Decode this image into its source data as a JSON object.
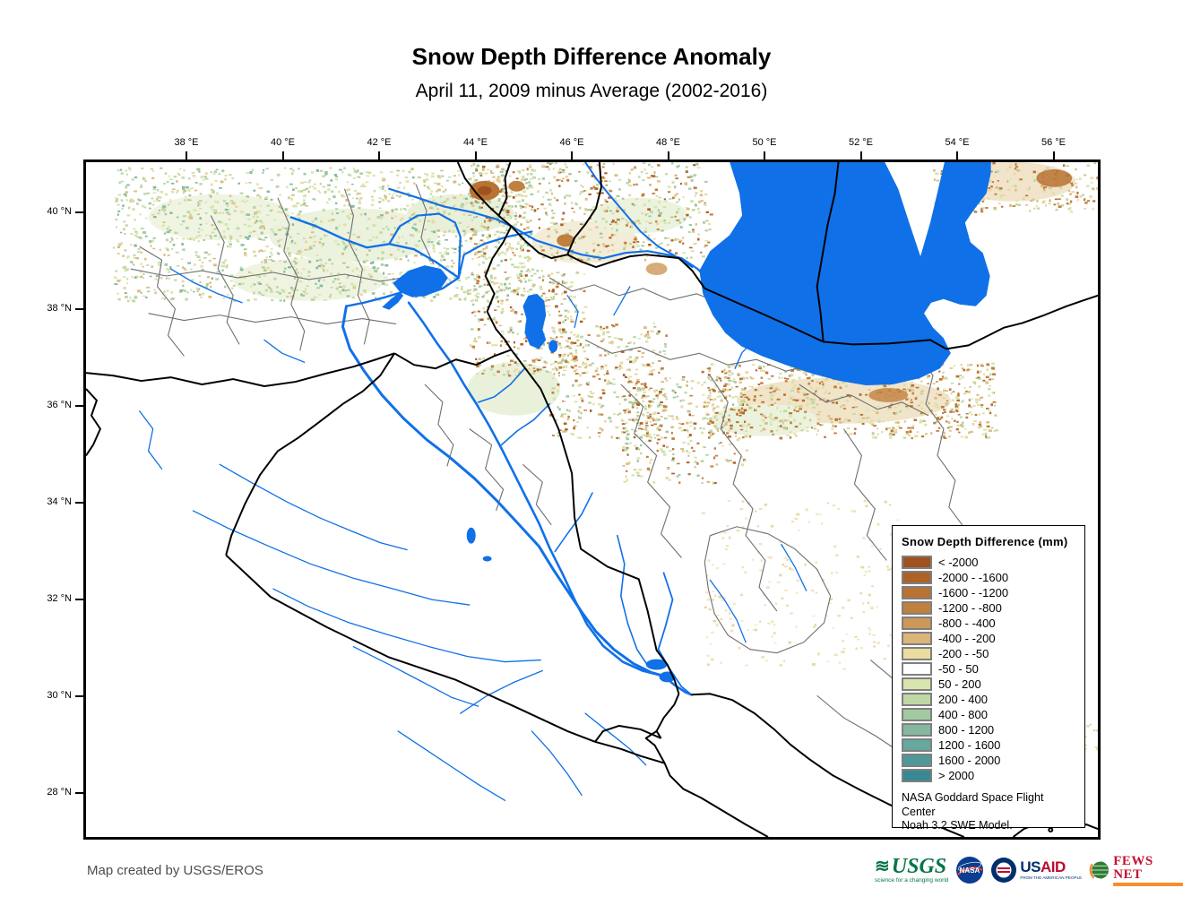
{
  "title": "Snow Depth Difference Anomaly",
  "subtitle": "April 11, 2009 minus Average (2002-2016)",
  "axes": {
    "lon_ticks": [
      "38 °E",
      "40 °E",
      "42 °E",
      "44 °E",
      "46 °E",
      "48 °E",
      "50 °E",
      "52 °E",
      "54 °E",
      "56 °E"
    ],
    "lat_ticks": [
      "40 °N",
      "38 °N",
      "36 °N",
      "34 °N",
      "32 °N",
      "30 °N",
      "28 °N"
    ]
  },
  "legend": {
    "title": "Snow Depth Difference (mm)",
    "entries": [
      {
        "label": "< -2000",
        "color": "#A0521E"
      },
      {
        "label": "-2000 - -1600",
        "color": "#AD6226"
      },
      {
        "label": "-1600 - -1200",
        "color": "#B87232"
      },
      {
        "label": "-1200 - -800",
        "color": "#C0803E"
      },
      {
        "label": "-800 - -400",
        "color": "#CC9858"
      },
      {
        "label": "-400 - -200",
        "color": "#DBB578"
      },
      {
        "label": "-200 - -50",
        "color": "#EBDCA0"
      },
      {
        "label": "-50 - 50",
        "color": "#FFFFFF"
      },
      {
        "label": "50 - 200",
        "color": "#D8E5AC"
      },
      {
        "label": "200 - 400",
        "color": "#BFD8A6"
      },
      {
        "label": "400 - 800",
        "color": "#A2C9A0"
      },
      {
        "label": "800 - 1200",
        "color": "#84B9A0"
      },
      {
        "label": "1200 - 1600",
        "color": "#66A89E"
      },
      {
        "label": "1600 - 2000",
        "color": "#4F989A"
      },
      {
        "label": "> 2000",
        "color": "#388894"
      }
    ],
    "note_line1": "NASA Goddard Space Flight Center",
    "note_line2": "Noah 3.2 SWE Model."
  },
  "map": {
    "water_color": "#1070E8",
    "country_border_color": "#000000",
    "admin_border_color": "#6E6E6E"
  },
  "footer": {
    "attribution": "Map created by USGS/EROS",
    "logos": {
      "usgs": {
        "text": "USGS",
        "tagline": "science for a changing world",
        "color": "#067647"
      },
      "nasa": {
        "text": "NASA",
        "color": "#0B3D91",
        "swoosh_color": "#FC3D21"
      },
      "usaid": {
        "text_us": "US",
        "text_aid": "AID",
        "tagline": "FROM THE AMERICAN PEOPLE",
        "blue": "#002F6C",
        "red": "#BA0C2F"
      },
      "fewsnet": {
        "text": "FEWS NET",
        "red": "#C41230",
        "orange": "#F68D2E"
      }
    }
  }
}
